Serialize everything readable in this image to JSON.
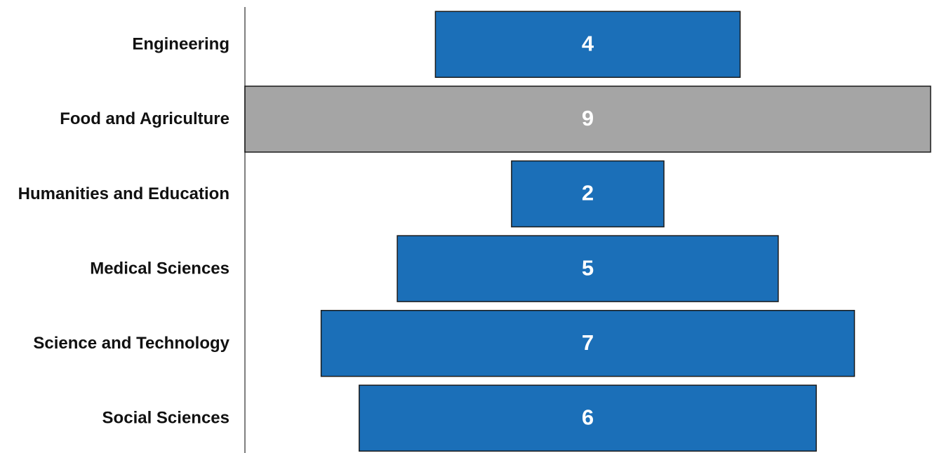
{
  "chart_data": {
    "type": "bar",
    "orientation": "horizontal",
    "style": "funnel",
    "categories": [
      "Engineering",
      "Food and Agriculture",
      "Humanities and Education",
      "Medical Sciences",
      "Science and Technology",
      "Social Sciences"
    ],
    "values": [
      4,
      9,
      2,
      5,
      7,
      6
    ],
    "data_labels": [
      "4",
      "9",
      "2",
      "5",
      "7",
      "6"
    ],
    "title": "",
    "xlabel": "",
    "ylabel": "",
    "xlim": [
      0,
      9
    ],
    "grid": false,
    "legend": "none",
    "colors": {
      "bar": "#1b6fb8",
      "highlight_bar": "#a5a5a5",
      "bar_border": "#1a1a1a",
      "axis_line": "#7f7f7f",
      "label_text": "#111111",
      "value_text": "#ffffff"
    },
    "highlight_category": "Food and Agriculture"
  }
}
